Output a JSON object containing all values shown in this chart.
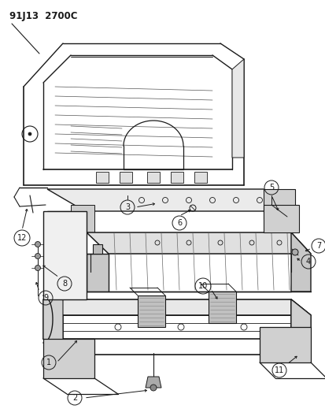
{
  "title": "91J13  2700C",
  "bg": "#ffffff",
  "lc": "#1a1a1a",
  "fig_w": 4.14,
  "fig_h": 5.33,
  "dpi": 100
}
